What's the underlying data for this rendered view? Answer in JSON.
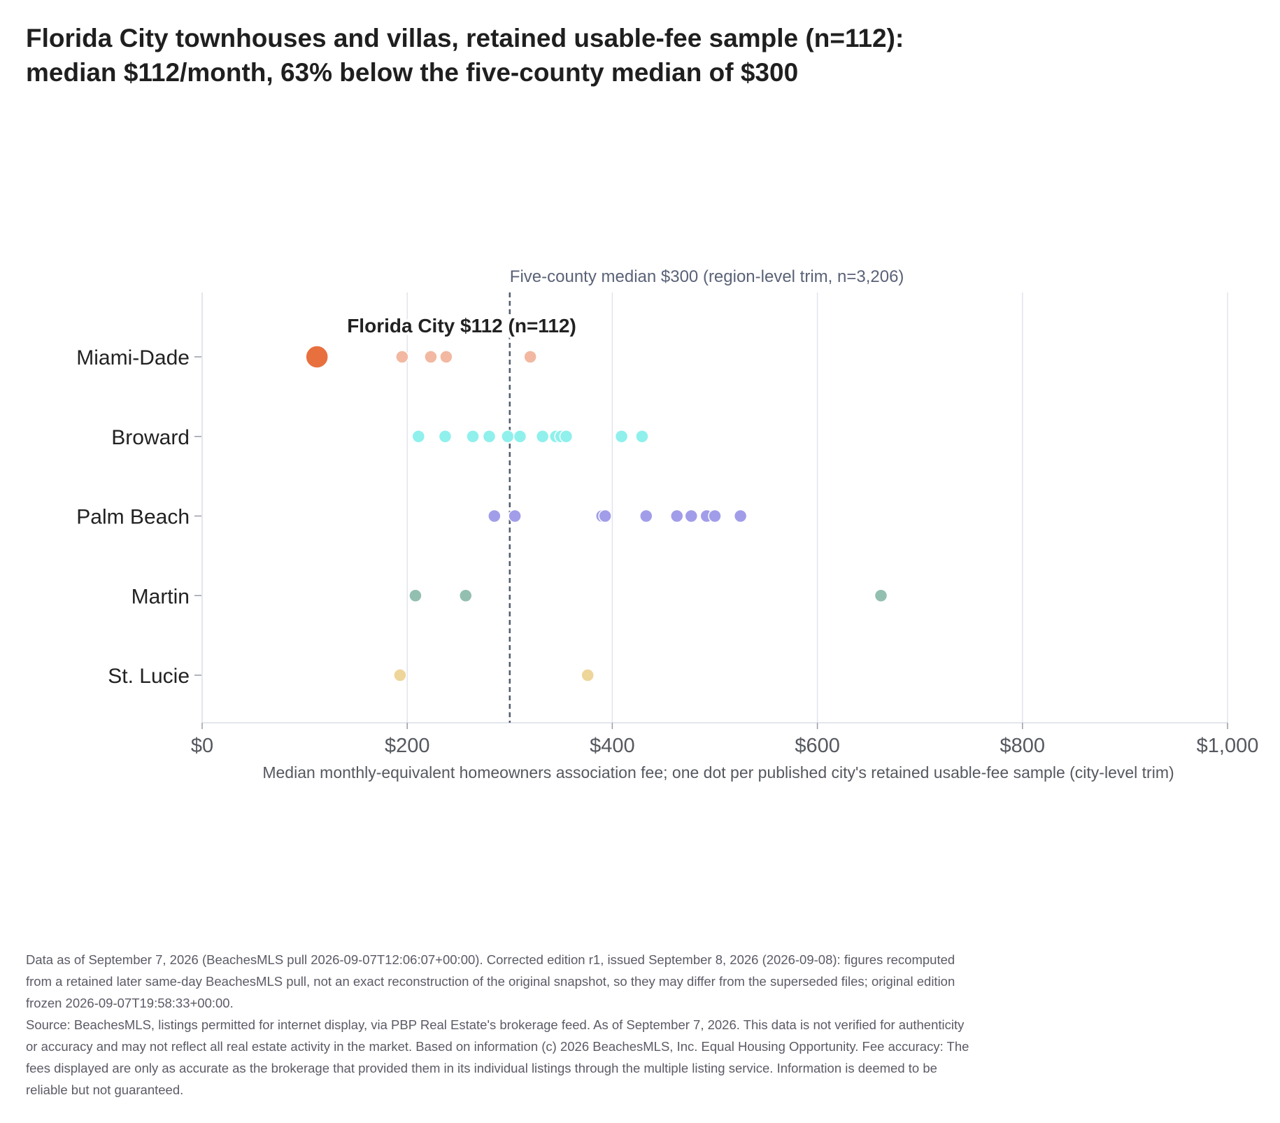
{
  "chart_data": {
    "type": "scatter",
    "title": "Florida City townhouses and villas, retained usable-fee sample (n=112): median $112/month, 63% below the five-county median of $300",
    "xlabel": "Median monthly-equivalent homeowners association fee; one dot per published city's retained usable-fee sample (city-level trim)",
    "ylabel": "",
    "xlim": [
      0,
      1000
    ],
    "x_ticks": [
      0,
      200,
      400,
      600,
      800,
      1000
    ],
    "x_tick_labels": [
      "$0",
      "$200",
      "$400",
      "$600",
      "$800",
      "$1,000"
    ],
    "categories": [
      "Miami-Dade",
      "Broward",
      "Palm Beach",
      "Martin",
      "St. Lucie"
    ],
    "grid": "vertical",
    "series": [
      {
        "category": "Miami-Dade",
        "color": "#f2b8a2",
        "values": [
          195,
          223,
          238,
          320
        ]
      },
      {
        "category": "Broward",
        "color": "#8ff0ec",
        "values": [
          211,
          237,
          264,
          280,
          298,
          310,
          332,
          345,
          350,
          355,
          409,
          429
        ]
      },
      {
        "category": "Palm Beach",
        "color": "#a29de9",
        "values": [
          285,
          305,
          390,
          393,
          433,
          463,
          477,
          492,
          500,
          525
        ]
      },
      {
        "category": "Martin",
        "color": "#93bfb0",
        "values": [
          208,
          257,
          662
        ]
      },
      {
        "category": "St. Lucie",
        "color": "#eed59a",
        "values": [
          193,
          376
        ]
      }
    ],
    "highlight": {
      "category": "Miami-Dade",
      "value": 112,
      "label": "Florida City $112 (n=112)",
      "color": "#e8703e"
    },
    "reference_line": {
      "value": 300,
      "label": "Five-county median $300 (region-level trim, n=3,206)",
      "color": "#525a6e"
    }
  },
  "notes": {
    "edition": "Data as of September 7, 2026 (BeachesMLS pull 2026-09-07T12:06:07+00:00). Corrected edition r1, issued September 8, 2026 (2026-09-08): figures recomputed from a retained later same-day BeachesMLS pull, not an exact reconstruction of the original snapshot, so they may differ from the superseded files; original edition frozen 2026-09-07T19:58:33+00:00.",
    "source": "Source: BeachesMLS, listings permitted for internet display, via PBP Real Estate's brokerage feed. As of September 7, 2026. This data is not verified for authenticity or accuracy and may not reflect all real estate activity in the market. Based on information (c) 2026 BeachesMLS, Inc. Equal Housing Opportunity. Fee accuracy: The fees displayed are only as accurate as the brokerage that provided them in its individual listings through the multiple listing service. Information is deemed to be reliable but not guaranteed."
  }
}
